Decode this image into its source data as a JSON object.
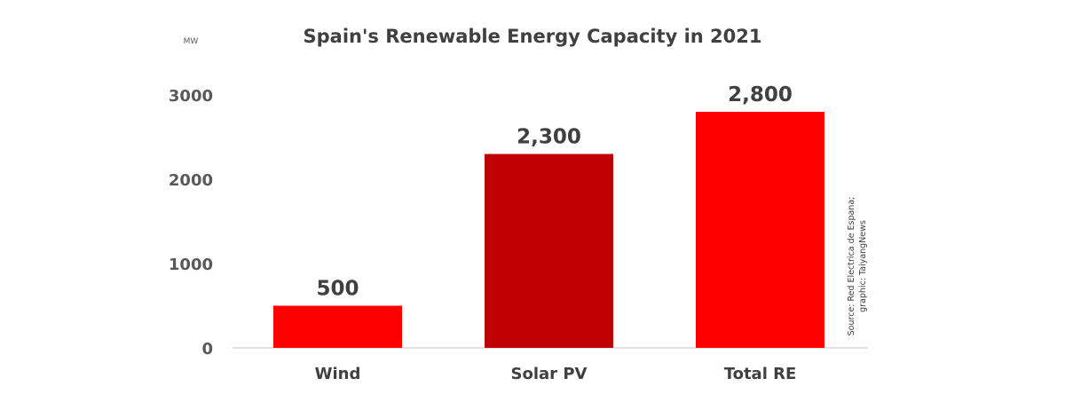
{
  "chart_data": {
    "type": "bar",
    "title": "Spain's Renewable Energy Capacity in 2021",
    "ylabel": "MW",
    "xlabel": "",
    "categories": [
      "Wind",
      "Solar PV",
      "Total RE"
    ],
    "values": [
      500,
      2300,
      2800
    ],
    "data_labels": [
      "500",
      "2,300",
      "2,800"
    ],
    "colors": [
      "#FF0000",
      "#C00000",
      "#FF0000"
    ],
    "ylim": [
      0,
      3000
    ],
    "yticks": [
      0,
      1000,
      2000,
      3000
    ],
    "grid": false,
    "legend": "none",
    "source": "Source: Red Electrica de Espana;",
    "credit": "graphic: TaiyangNews"
  }
}
